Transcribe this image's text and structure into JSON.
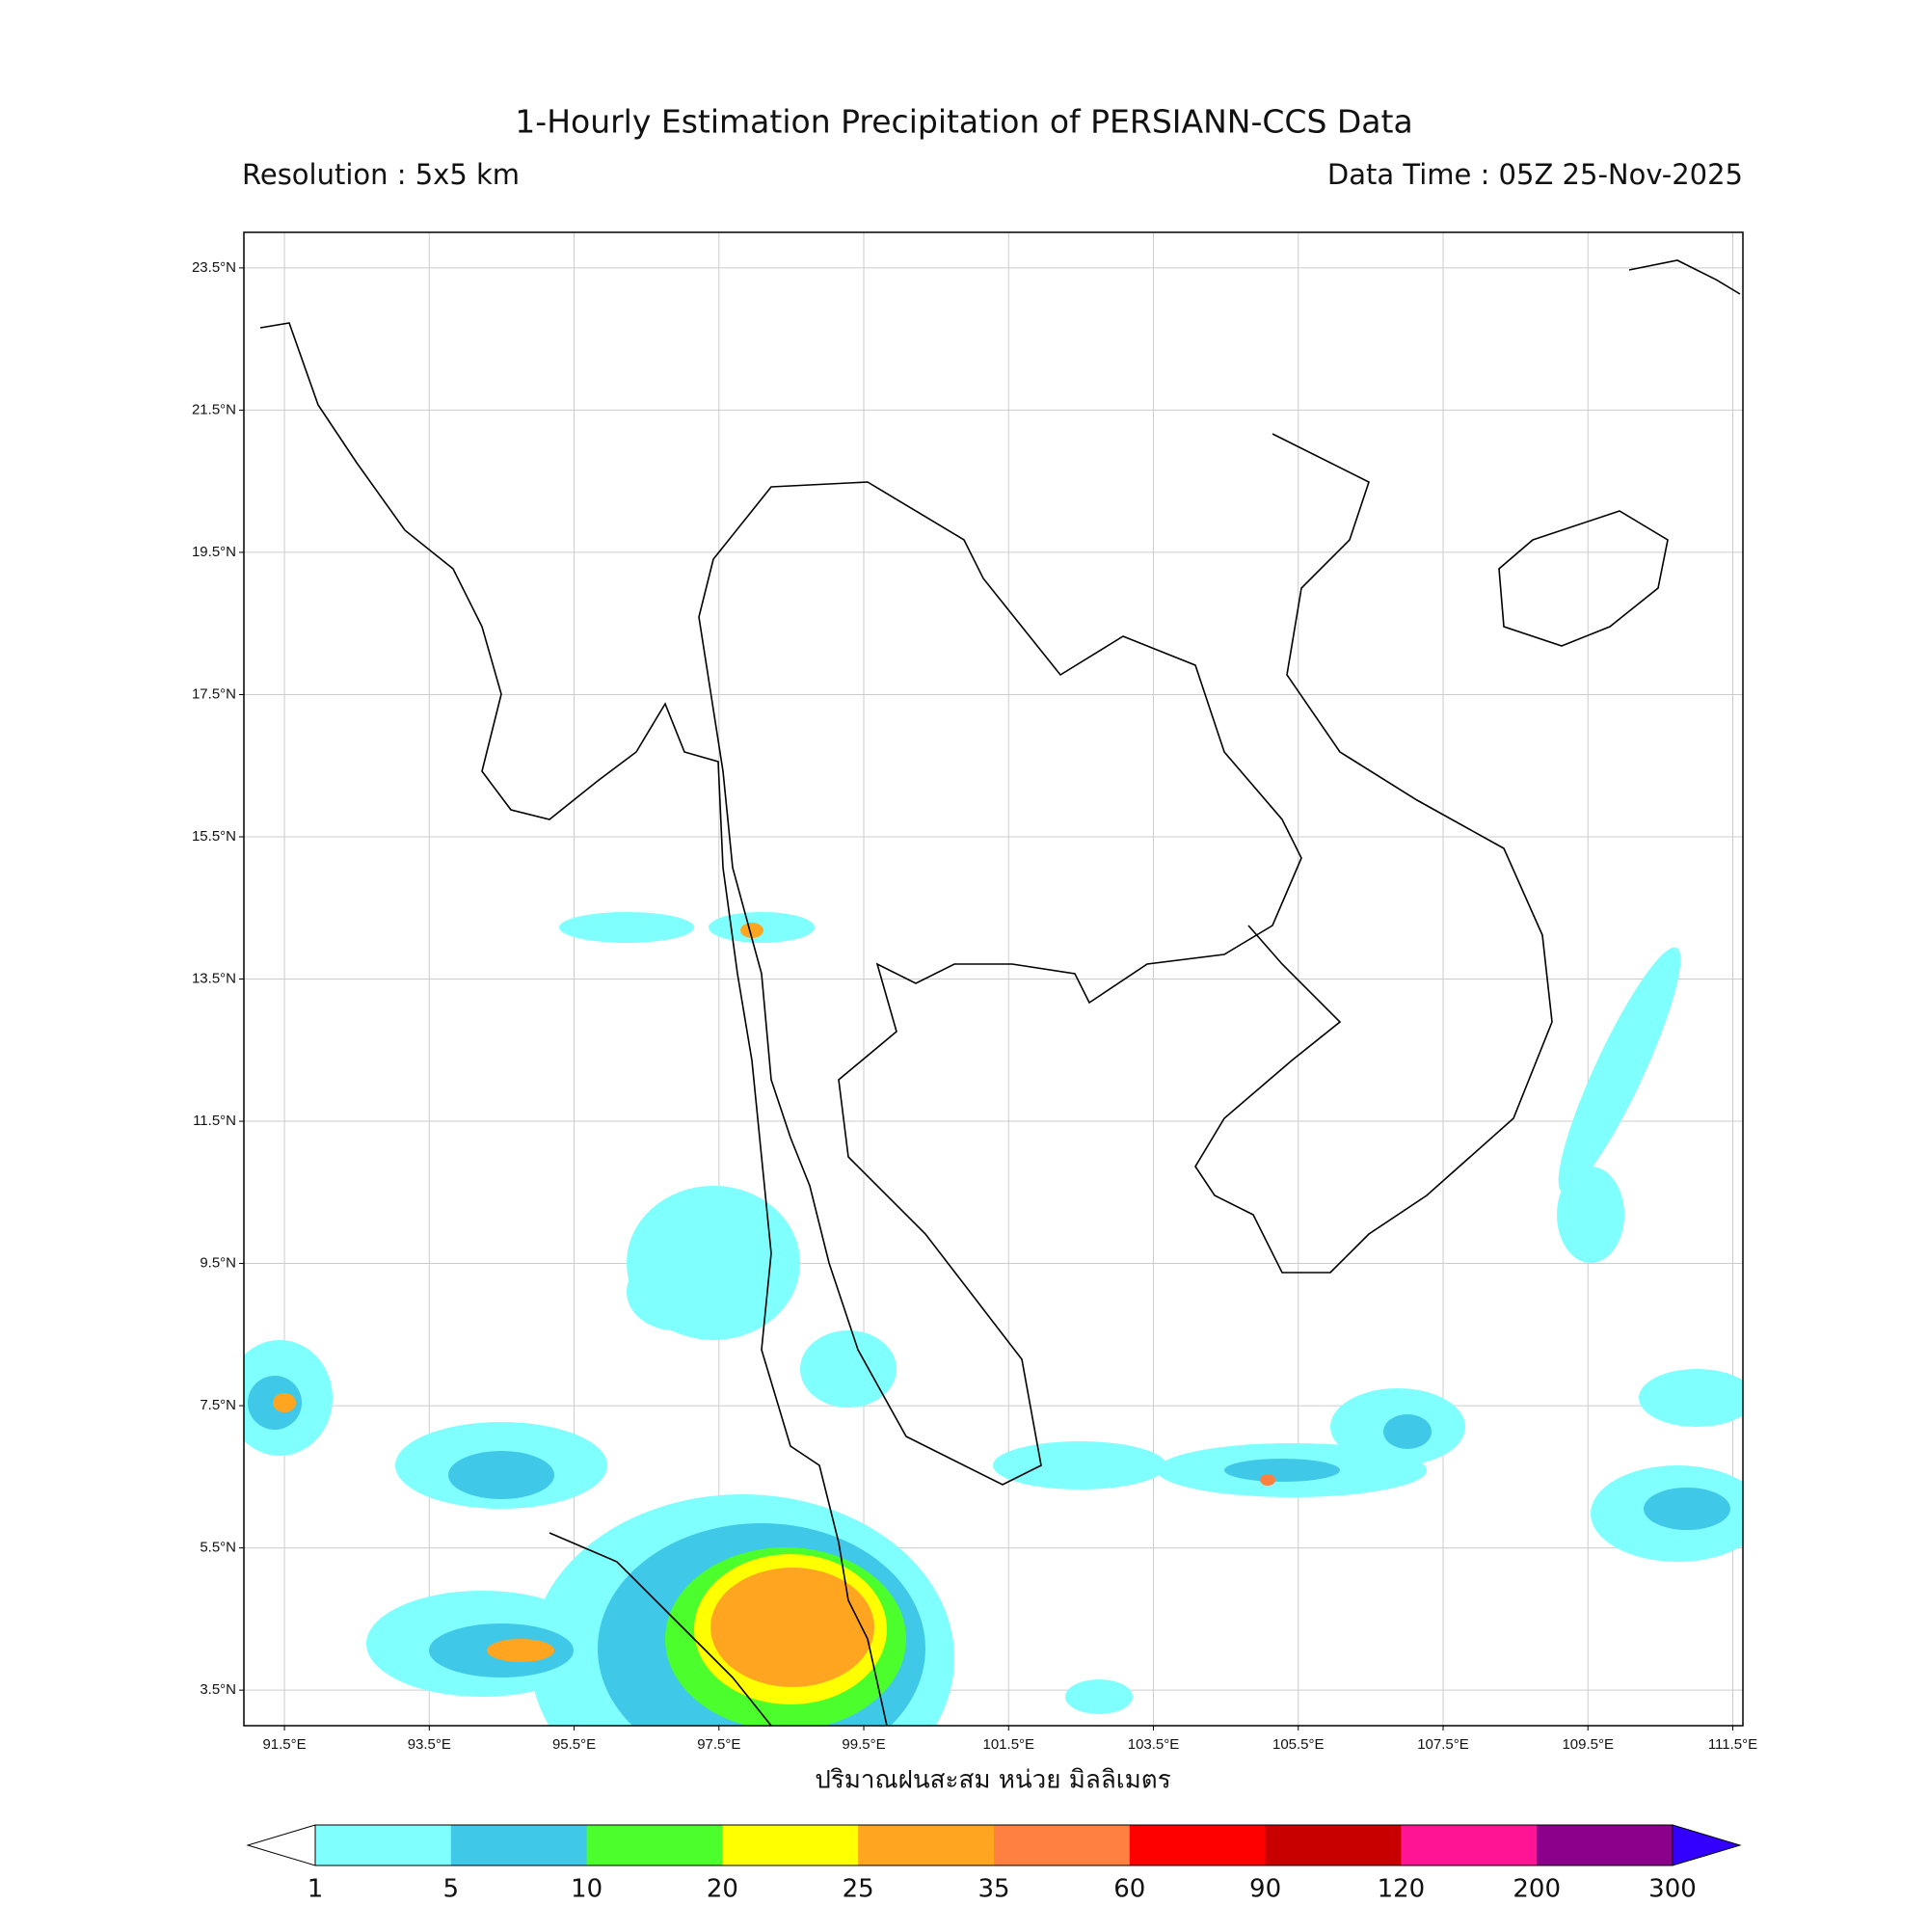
{
  "title": "1-Hourly Estimation Precipitation of PERSIANN-CCS Data",
  "resolution": "Resolution : 5x5 km",
  "data_time": "Data Time : 05Z 25-Nov-2025",
  "map": {
    "xlim": [
      90.94,
      111.64
    ],
    "ylim": [
      3,
      24
    ],
    "grid": true,
    "lon_ticks": [
      {
        "value": 91.5,
        "label": "91.5°E"
      },
      {
        "value": 93.5,
        "label": "93.5°E"
      },
      {
        "value": 95.5,
        "label": "95.5°E"
      },
      {
        "value": 97.5,
        "label": "97.5°E"
      },
      {
        "value": 99.5,
        "label": "99.5°E"
      },
      {
        "value": 101.5,
        "label": "101.5°E"
      },
      {
        "value": 103.5,
        "label": "103.5°E"
      },
      {
        "value": 105.5,
        "label": "105.5°E"
      },
      {
        "value": 107.5,
        "label": "107.5°E"
      },
      {
        "value": 109.5,
        "label": "109.5°E"
      },
      {
        "value": 111.5,
        "label": "111.5°E"
      }
    ],
    "lat_ticks": [
      {
        "value": 23.5,
        "label": "23.5°N"
      },
      {
        "value": 21.5,
        "label": "21.5°N"
      },
      {
        "value": 19.5,
        "label": "19.5°N"
      },
      {
        "value": 17.5,
        "label": "17.5°N"
      },
      {
        "value": 15.5,
        "label": "15.5°N"
      },
      {
        "value": 13.5,
        "label": "13.5°N"
      },
      {
        "value": 11.5,
        "label": "11.5°N"
      },
      {
        "value": 9.5,
        "label": "9.5°N"
      },
      {
        "value": 7.5,
        "label": "7.5°N"
      },
      {
        "value": 5.5,
        "label": "5.5°N"
      },
      {
        "value": 3.5,
        "label": "3.5°N"
      }
    ]
  },
  "xlabel": "ปริมาณฝนสะสม หน่วย มิลลิเมตร",
  "colorbar": {
    "levels": [
      1,
      5,
      10,
      20,
      25,
      35,
      60,
      90,
      120,
      200,
      300
    ],
    "colors": [
      "#80ffff",
      "#40c8e8",
      "#4cff2c",
      "#ffff00",
      "#ffa520",
      "#ff8040",
      "#ff0000",
      "#c80000",
      "#ff1493",
      "#8b008b"
    ],
    "under_color": "#ffffff",
    "over_color": "#3300ff"
  }
}
